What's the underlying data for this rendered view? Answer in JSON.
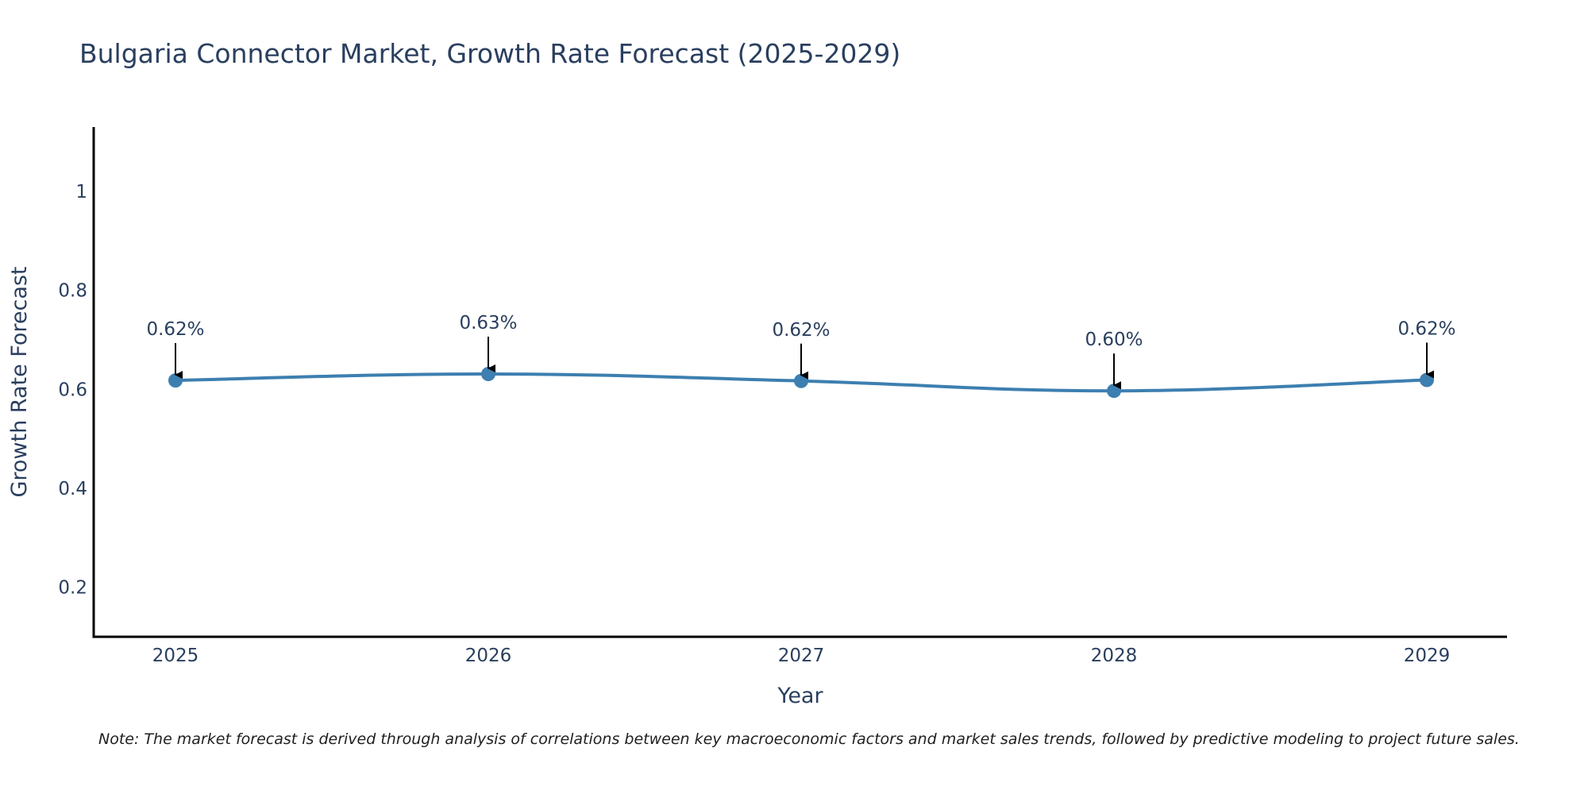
{
  "chart_data": {
    "type": "line",
    "title": "Bulgaria Connector Market, Growth Rate Forecast (2025-2029)",
    "xlabel": "Year",
    "ylabel": "Growth Rate Forecast",
    "categories": [
      "2025",
      "2026",
      "2027",
      "2028",
      "2029"
    ],
    "values": [
      0.618,
      0.631,
      0.617,
      0.597,
      0.619
    ],
    "data_labels": [
      "0.62%",
      "0.63%",
      "0.62%",
      "0.60%",
      "0.62%"
    ],
    "y_ticks": [
      0.2,
      0.4,
      0.6,
      0.8,
      1
    ],
    "y_tick_labels": [
      "0.2",
      "0.4",
      "0.6",
      "0.8",
      "1"
    ],
    "ylim": [
      0.1,
      1.13
    ],
    "grid": false,
    "series_color": "#3d7fb0",
    "axis_color": "#000000",
    "text_color": "#2a3f5f"
  },
  "footer": {
    "note": "Note: The market forecast is derived through analysis of correlations between key macroeconomic factors and market sales trends, followed by predictive modeling to project future sales."
  }
}
